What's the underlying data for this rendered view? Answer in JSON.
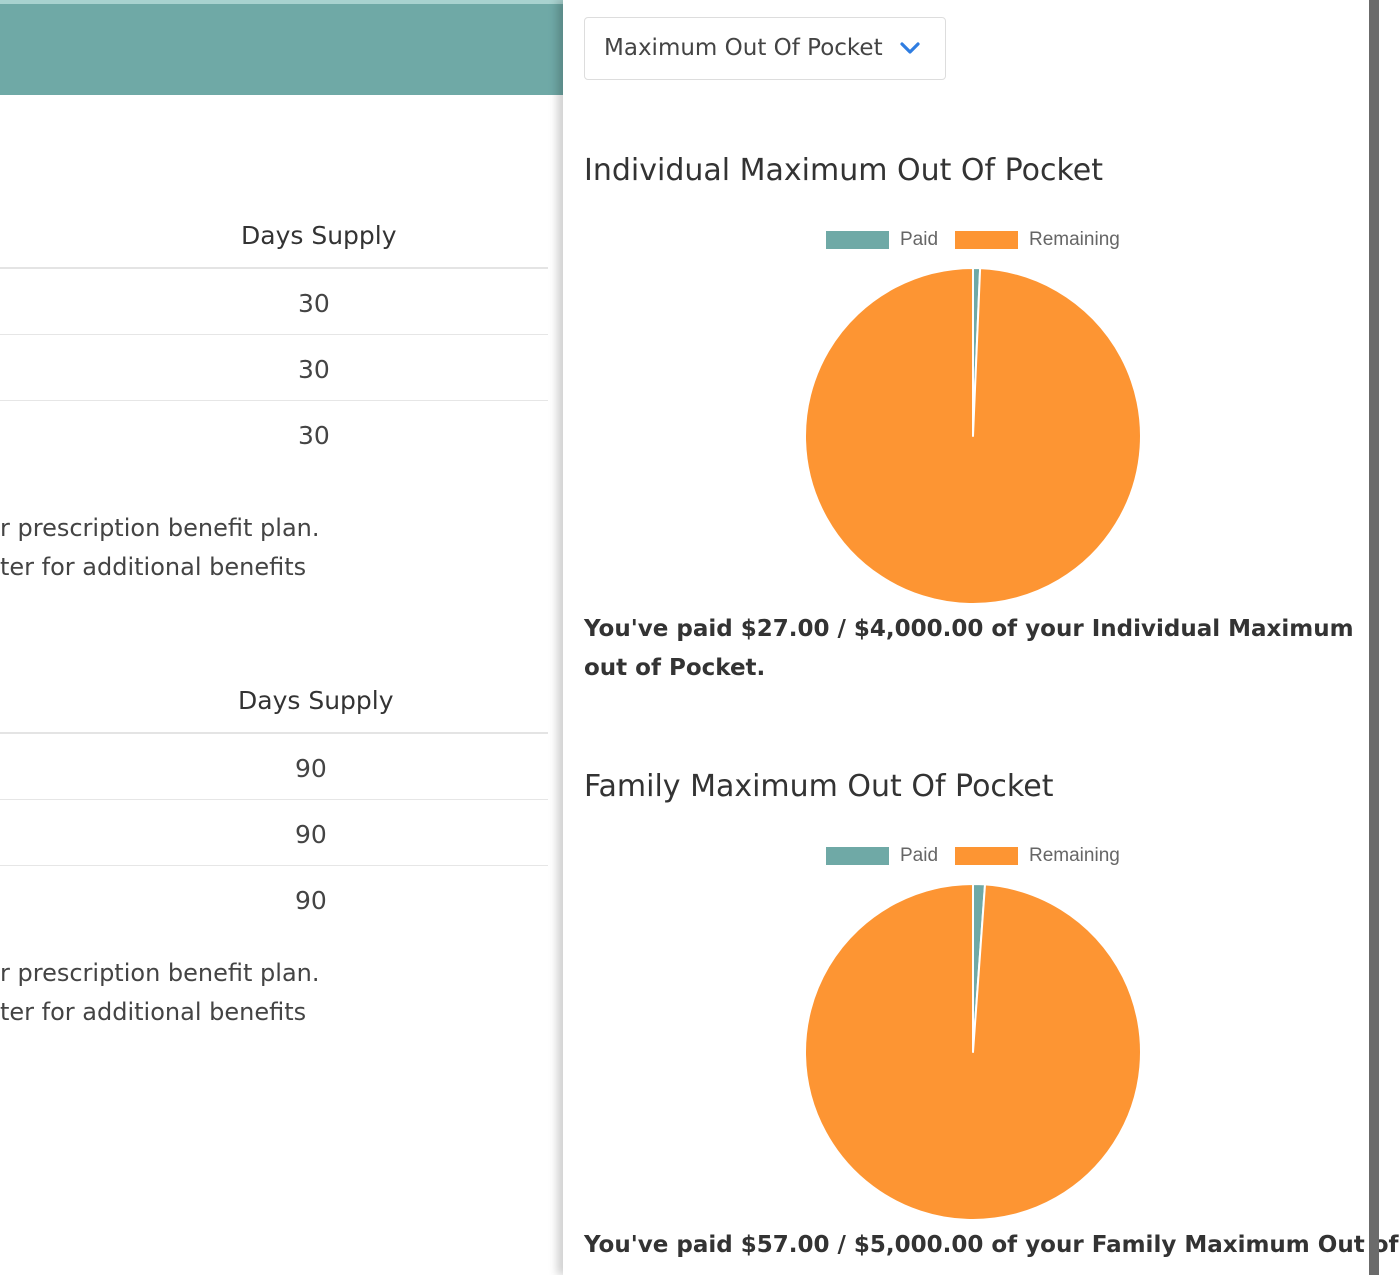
{
  "left": {
    "table1": {
      "header": "Days Supply",
      "rows": [
        "30",
        "30",
        "30"
      ]
    },
    "note1": {
      "line1": "r prescription benefit plan.",
      "line2": "ter for additional benefits"
    },
    "table2": {
      "header": "Days Supply",
      "rows": [
        "90",
        "90",
        "90"
      ]
    },
    "note2": {
      "line1": "r prescription benefit plan.",
      "line2": "ter for additional benefits"
    }
  },
  "panel": {
    "dropdown": {
      "selected": "Maximum Out Of Pocket",
      "icon": "chevron-down-icon"
    },
    "individual": {
      "title": "Individual Maximum Out Of Pocket",
      "summary": "You've paid $27.00 / $4,000.00 of your Individual Maximum out of Pocket."
    },
    "family": {
      "title": "Family Maximum Out Of Pocket",
      "summary": "You've paid $57.00 / $5,000.00 of your Family Maximum Out of"
    }
  },
  "colors": {
    "paid": "#6fa9a6",
    "remaining": "#fd9533",
    "accent": "#2f7de1"
  },
  "chart_data": [
    {
      "type": "pie",
      "title": "Individual Maximum Out Of Pocket",
      "legend": "top",
      "categories": [
        "Paid",
        "Remaining"
      ],
      "values": [
        27,
        3973
      ]
    },
    {
      "type": "pie",
      "title": "Family Maximum Out Of Pocket",
      "legend": "top",
      "categories": [
        "Paid",
        "Remaining"
      ],
      "values": [
        57,
        4943
      ]
    }
  ]
}
